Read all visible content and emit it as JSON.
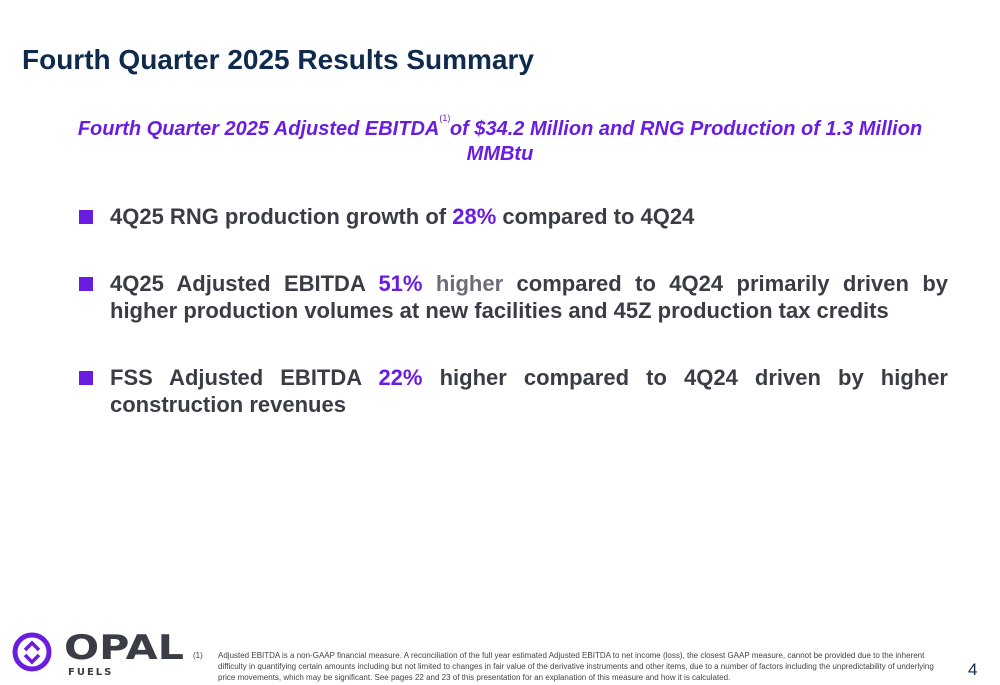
{
  "title": "Fourth Quarter 2025 Results Summary",
  "subtitle": {
    "before": "Fourth Quarter 2025 Adjusted EBITDA",
    "sup": "(1)",
    "after": "of $34.2 Million and RNG Production of 1.3 Million MMBtu"
  },
  "bullets": [
    {
      "a": "4Q25 RNG production growth of ",
      "hl": "28%",
      "b": "",
      "muted": "",
      "c": " compared to 4Q24"
    },
    {
      "a": "4Q25 Adjusted EBITDA ",
      "hl": "51%",
      "b": " ",
      "muted": "higher",
      "c": " compared to 4Q24 primarily driven by higher production volumes at new facilities and 45Z production tax credits"
    },
    {
      "a": "FSS Adjusted EBITDA ",
      "hl": "22%",
      "b": "",
      "muted": "",
      "c": " higher compared to 4Q24 driven by higher construction revenues"
    }
  ],
  "logo": {
    "name": "OPAL",
    "sub": "FUELS"
  },
  "footnote": {
    "num": "(1)",
    "text": "Adjusted EBITDA is a non-GAAP financial measure. A reconciliation of the full year estimated Adjusted EBITDA to net income (loss), the closest GAAP measure, cannot be provided due to the inherent difficulty in quantifying certain amounts including but not limited to changes in fair value of the derivative instruments and other items, due to a number of factors including the unpredictability of underlying price movements, which may be significant. See pages 22 and 23 of this presentation for an explanation of this measure and how it is calculated."
  },
  "page_number": "4",
  "colors": {
    "accent": "#6a1de0",
    "title": "#0f2a4c",
    "text": "#3a3d45"
  }
}
